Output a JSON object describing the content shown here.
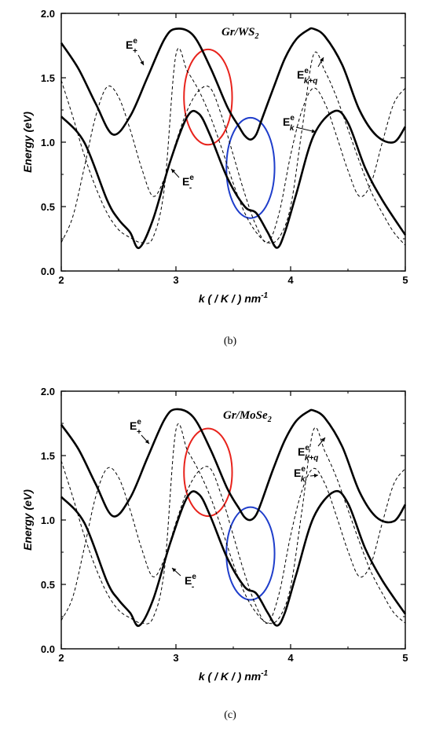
{
  "chart_data": [
    {
      "type": "line",
      "panel": "(b)",
      "title": "Gr/WS2",
      "title_main": "Gr/WS",
      "title_sub": "2",
      "xlabel": "k (/K/) nm",
      "xlabel_main": "k ( / K / ) nm",
      "xlabel_sup": "-1",
      "ylabel": "Energy (eV)",
      "xlim": [
        2,
        5
      ],
      "ylim": [
        0,
        2
      ],
      "xticks": [
        "2",
        "3",
        "4",
        "5"
      ],
      "yticks": [
        "0.0",
        "0.5",
        "1.0",
        "1.5",
        "2.0"
      ],
      "grid": false,
      "series": [
        {
          "name": "E+e",
          "label_main": "E",
          "label_sup": "e",
          "label_sub": "+",
          "style": "solid",
          "color": "#000000",
          "x": [
            2.0,
            2.15,
            2.3,
            2.45,
            2.6,
            2.75,
            2.9,
            3.0,
            3.15,
            3.3,
            3.45,
            3.55,
            3.6,
            3.65,
            3.7,
            3.75,
            3.85,
            3.95,
            4.05,
            4.15,
            4.2,
            4.3,
            4.45,
            4.6,
            4.75,
            4.9,
            5.0
          ],
          "y": [
            1.77,
            1.57,
            1.3,
            1.06,
            1.2,
            1.5,
            1.8,
            1.88,
            1.83,
            1.58,
            1.27,
            1.12,
            1.05,
            1.02,
            1.06,
            1.18,
            1.42,
            1.65,
            1.8,
            1.87,
            1.88,
            1.82,
            1.6,
            1.25,
            1.05,
            1.0,
            1.12
          ]
        },
        {
          "name": "E-e",
          "label_main": "E",
          "label_sup": "e",
          "label_sub": "-",
          "style": "solid",
          "color": "#000000",
          "x": [
            2.0,
            2.2,
            2.4,
            2.5,
            2.6,
            2.68,
            2.8,
            2.95,
            3.1,
            3.2,
            3.3,
            3.45,
            3.6,
            3.7,
            3.8,
            3.88,
            3.95,
            4.05,
            4.2,
            4.38,
            4.5,
            4.65,
            4.8,
            5.0
          ],
          "y": [
            1.2,
            1.0,
            0.55,
            0.4,
            0.3,
            0.18,
            0.4,
            0.85,
            1.2,
            1.22,
            1.05,
            0.72,
            0.5,
            0.45,
            0.3,
            0.18,
            0.3,
            0.6,
            1.05,
            1.24,
            1.15,
            0.8,
            0.55,
            0.28
          ]
        },
        {
          "name": "Ek+qe",
          "label_main": "E",
          "label_sup": "e",
          "label_sub": "k+q",
          "style": "dashed",
          "color": "#000000",
          "x": [
            2.0,
            2.1,
            2.2,
            2.3,
            2.4,
            2.5,
            2.6,
            2.7,
            2.8,
            2.9,
            3.0,
            3.1,
            3.2,
            3.3,
            3.4,
            3.5,
            3.6,
            3.7,
            3.8,
            3.9,
            4.0,
            4.1,
            4.2,
            4.3,
            4.4,
            4.5,
            4.6,
            4.7,
            4.8,
            4.9,
            5.0
          ],
          "y": [
            1.48,
            1.2,
            0.9,
            0.65,
            0.45,
            0.32,
            0.26,
            0.22,
            0.26,
            0.65,
            1.68,
            1.55,
            1.4,
            1.2,
            0.95,
            0.68,
            0.45,
            0.3,
            0.22,
            0.26,
            0.5,
            1.1,
            1.68,
            1.55,
            1.35,
            1.1,
            0.85,
            0.62,
            0.45,
            0.3,
            0.2
          ]
        },
        {
          "name": "Eke",
          "label_main": "E",
          "label_sup": "e",
          "label_sub": "k",
          "style": "dashed",
          "color": "#000000",
          "x": [
            2.0,
            2.1,
            2.2,
            2.3,
            2.4,
            2.5,
            2.6,
            2.7,
            2.8,
            2.9,
            3.0,
            3.1,
            3.2,
            3.3,
            3.4,
            3.5,
            3.6,
            3.7,
            3.8,
            3.9,
            4.0,
            4.1,
            4.2,
            4.3,
            4.4,
            4.5,
            4.6,
            4.7,
            4.8,
            4.9,
            5.0
          ],
          "y": [
            0.22,
            0.42,
            0.8,
            1.2,
            1.43,
            1.35,
            1.1,
            0.8,
            0.58,
            0.72,
            1.0,
            1.25,
            1.4,
            1.42,
            1.2,
            0.9,
            0.6,
            0.35,
            0.22,
            0.45,
            0.9,
            1.25,
            1.42,
            1.3,
            1.05,
            0.78,
            0.58,
            0.68,
            1.0,
            1.3,
            1.42
          ]
        }
      ],
      "ellipses": [
        {
          "color": "#e8231c",
          "cx": 3.28,
          "cy": 1.35,
          "rx": 0.21,
          "ry": 0.37
        },
        {
          "color": "#1f3ecb",
          "cx": 3.65,
          "cy": 0.8,
          "rx": 0.21,
          "ry": 0.39
        }
      ]
    },
    {
      "type": "line",
      "panel": "(c)",
      "title": "Gr/MoSe2",
      "title_main": "Gr/MoSe",
      "title_sub": "2",
      "xlabel": "k (/K/) nm",
      "xlabel_main": "k ( / K / ) nm",
      "xlabel_sup": "-1",
      "ylabel": "Energy (eV)",
      "xlim": [
        2,
        5
      ],
      "ylim": [
        0,
        2
      ],
      "xticks": [
        "2",
        "3",
        "4",
        "5"
      ],
      "yticks": [
        "0.0",
        "0.5",
        "1.0",
        "1.5",
        "2.0"
      ],
      "grid": false,
      "series": [
        {
          "name": "E+e",
          "label_main": "E",
          "label_sup": "e",
          "label_sub": "+",
          "style": "solid",
          "color": "#000000",
          "x": [
            2.0,
            2.15,
            2.3,
            2.45,
            2.6,
            2.75,
            2.9,
            3.0,
            3.15,
            3.3,
            3.45,
            3.55,
            3.6,
            3.65,
            3.7,
            3.75,
            3.85,
            3.95,
            4.05,
            4.15,
            4.2,
            4.3,
            4.45,
            4.6,
            4.75,
            4.9,
            5.0
          ],
          "y": [
            1.74,
            1.55,
            1.28,
            1.03,
            1.17,
            1.48,
            1.78,
            1.86,
            1.8,
            1.55,
            1.24,
            1.09,
            1.02,
            1.0,
            1.04,
            1.15,
            1.4,
            1.62,
            1.77,
            1.84,
            1.85,
            1.79,
            1.57,
            1.22,
            1.02,
            0.99,
            1.12
          ]
        },
        {
          "name": "E-e",
          "label_main": "E",
          "label_sup": "e",
          "label_sub": "-",
          "style": "solid",
          "color": "#000000",
          "x": [
            2.0,
            2.2,
            2.4,
            2.5,
            2.6,
            2.68,
            2.8,
            2.95,
            3.1,
            3.2,
            3.3,
            3.45,
            3.6,
            3.7,
            3.8,
            3.88,
            3.95,
            4.05,
            4.2,
            4.38,
            4.5,
            4.65,
            4.8,
            5.0
          ],
          "y": [
            1.18,
            0.98,
            0.52,
            0.38,
            0.28,
            0.18,
            0.38,
            0.82,
            1.18,
            1.2,
            1.03,
            0.7,
            0.48,
            0.43,
            0.28,
            0.18,
            0.28,
            0.58,
            1.02,
            1.22,
            1.13,
            0.78,
            0.53,
            0.27
          ]
        },
        {
          "name": "Ek+qe",
          "label_main": "E",
          "label_sup": "e",
          "label_sub": "k+q",
          "style": "dashed",
          "color": "#000000",
          "x": [
            2.0,
            2.1,
            2.2,
            2.3,
            2.4,
            2.5,
            2.6,
            2.7,
            2.8,
            2.9,
            3.0,
            3.1,
            3.2,
            3.3,
            3.4,
            3.5,
            3.6,
            3.7,
            3.8,
            3.9,
            4.0,
            4.1,
            4.2,
            4.3,
            4.4,
            4.5,
            4.6,
            4.7,
            4.8,
            4.9,
            5.0
          ],
          "y": [
            1.46,
            1.18,
            0.88,
            0.63,
            0.43,
            0.3,
            0.24,
            0.2,
            0.24,
            0.62,
            1.7,
            1.54,
            1.38,
            1.18,
            0.93,
            0.66,
            0.43,
            0.28,
            0.2,
            0.24,
            0.48,
            1.08,
            1.7,
            1.53,
            1.33,
            1.08,
            0.83,
            0.6,
            0.43,
            0.28,
            0.2
          ]
        },
        {
          "name": "Eke",
          "label_main": "E",
          "label_sup": "e",
          "label_sub": "k",
          "style": "dashed",
          "color": "#000000",
          "x": [
            2.0,
            2.1,
            2.2,
            2.3,
            2.4,
            2.5,
            2.6,
            2.7,
            2.8,
            2.9,
            3.0,
            3.1,
            3.2,
            3.3,
            3.4,
            3.5,
            3.6,
            3.7,
            3.8,
            3.9,
            4.0,
            4.1,
            4.2,
            4.3,
            4.4,
            4.5,
            4.6,
            4.7,
            4.8,
            4.9,
            5.0
          ],
          "y": [
            0.22,
            0.4,
            0.78,
            1.18,
            1.4,
            1.33,
            1.08,
            0.78,
            0.56,
            0.7,
            0.98,
            1.23,
            1.38,
            1.4,
            1.18,
            0.88,
            0.58,
            0.33,
            0.2,
            0.43,
            0.88,
            1.23,
            1.4,
            1.28,
            1.03,
            0.76,
            0.56,
            0.66,
            0.98,
            1.28,
            1.4
          ]
        }
      ],
      "ellipses": [
        {
          "color": "#e8231c",
          "cx": 3.28,
          "cy": 1.37,
          "rx": 0.21,
          "ry": 0.34
        },
        {
          "color": "#1f3ecb",
          "cx": 3.65,
          "cy": 0.74,
          "rx": 0.21,
          "ry": 0.36
        }
      ]
    }
  ]
}
